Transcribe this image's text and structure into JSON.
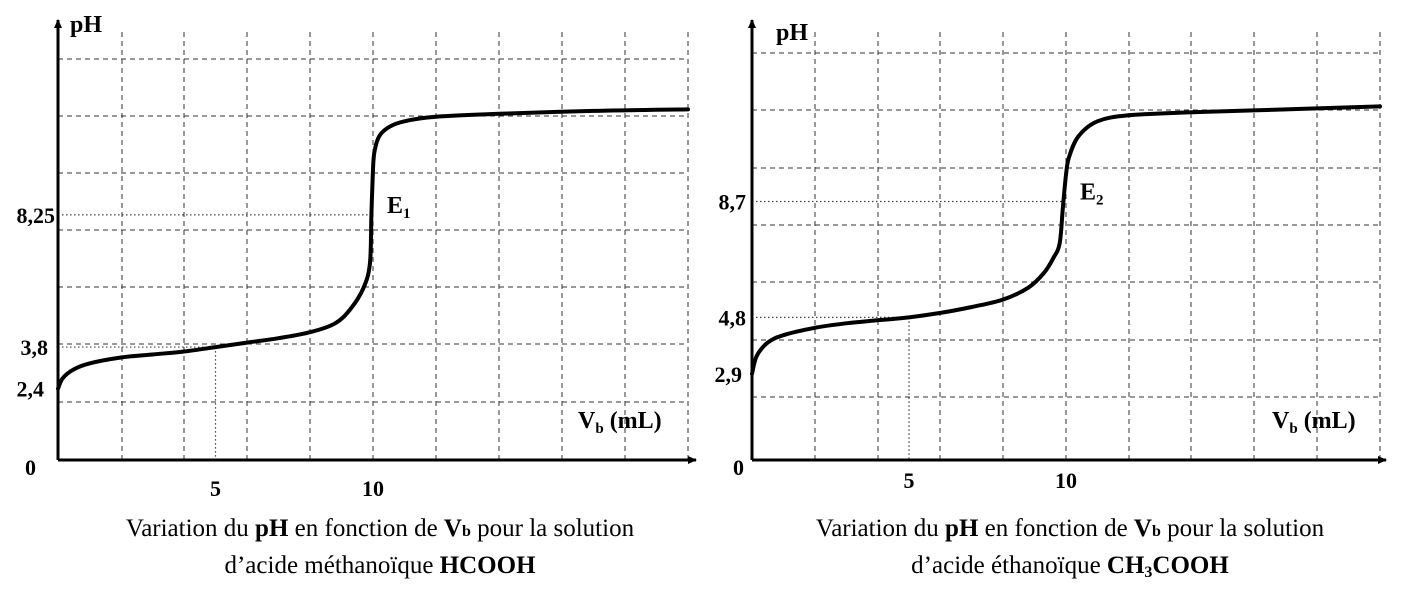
{
  "chart_data": [
    {
      "type": "line",
      "ylabel": "pH",
      "xlabel_main": "V",
      "xlabel_sub": "b",
      "xlabel_unit": "(mL)",
      "origin_label": "0",
      "xticks": [
        {
          "value": 5,
          "label": "5"
        },
        {
          "value": 10,
          "label": "10"
        }
      ],
      "yticks": [
        {
          "value": 2.4,
          "label": "2,4"
        },
        {
          "value": 3.8,
          "label": "3,8"
        },
        {
          "value": 8.25,
          "label": "8,25"
        }
      ],
      "equivalence": {
        "label_main": "E",
        "label_sub": "1",
        "x": 10,
        "y": 8.25
      },
      "half_equivalence": {
        "x": 5,
        "y": 3.8
      },
      "xlim": [
        0,
        20
      ],
      "ylim": [
        0,
        14
      ],
      "grid": true,
      "series": [
        {
          "x": [
            0,
            0.15,
            0.5,
            1,
            2,
            3,
            4,
            5,
            6,
            7,
            8,
            8.8,
            9.3,
            9.7,
            9.9,
            9.95,
            10,
            10.05,
            10.2,
            10.5,
            11,
            12,
            14,
            17,
            20
          ],
          "y": [
            2.4,
            2.75,
            3.05,
            3.25,
            3.45,
            3.55,
            3.65,
            3.8,
            3.95,
            4.1,
            4.3,
            4.6,
            5.1,
            5.8,
            6.6,
            8.25,
            9.8,
            10.4,
            10.9,
            11.2,
            11.4,
            11.55,
            11.65,
            11.75,
            11.8
          ]
        }
      ],
      "caption": {
        "pre": "Variation du ",
        "ph": "pH",
        "mid": " en fonction de ",
        "vb_main": "V",
        "vb_sub": "b",
        "post": " pour la solution",
        "line2_pre": "d’acide méthanoïque ",
        "formula": "HCOOH"
      }
    },
    {
      "type": "line",
      "ylabel": "pH",
      "xlabel_main": "V",
      "xlabel_sub": "b",
      "xlabel_unit": "(mL)",
      "origin_label": "0",
      "xticks": [
        {
          "value": 5,
          "label": "5"
        },
        {
          "value": 10,
          "label": "10"
        }
      ],
      "yticks": [
        {
          "value": 2.9,
          "label": "2,9"
        },
        {
          "value": 4.8,
          "label": "4,8"
        },
        {
          "value": 8.7,
          "label": "8,7"
        }
      ],
      "equivalence": {
        "label_main": "E",
        "label_sub": "2",
        "x": 10,
        "y": 8.7
      },
      "half_equivalence": {
        "x": 5,
        "y": 4.8
      },
      "xlim": [
        0,
        20
      ],
      "ylim": [
        0,
        14
      ],
      "grid": true,
      "series": [
        {
          "x": [
            0,
            0.15,
            0.5,
            1,
            2,
            3,
            4,
            5,
            6,
            7,
            8,
            8.8,
            9.3,
            9.6,
            9.8,
            9.9,
            10,
            10.1,
            10.4,
            11,
            12,
            14,
            17,
            20
          ],
          "y": [
            2.9,
            3.5,
            3.95,
            4.2,
            4.45,
            4.6,
            4.7,
            4.8,
            4.95,
            5.15,
            5.4,
            5.8,
            6.3,
            6.8,
            7.3,
            8.5,
            9.6,
            10.2,
            10.9,
            11.4,
            11.6,
            11.7,
            11.8,
            11.9
          ]
        }
      ],
      "caption": {
        "pre": "Variation du ",
        "ph": "pH",
        "mid": " en fonction de ",
        "vb_main": "V",
        "vb_sub": "b",
        "post": " pour la solution",
        "line2_pre": "d’acide éthanoïque ",
        "formula_a": "CH",
        "formula_sub": "3",
        "formula_b": "COOH"
      }
    }
  ]
}
